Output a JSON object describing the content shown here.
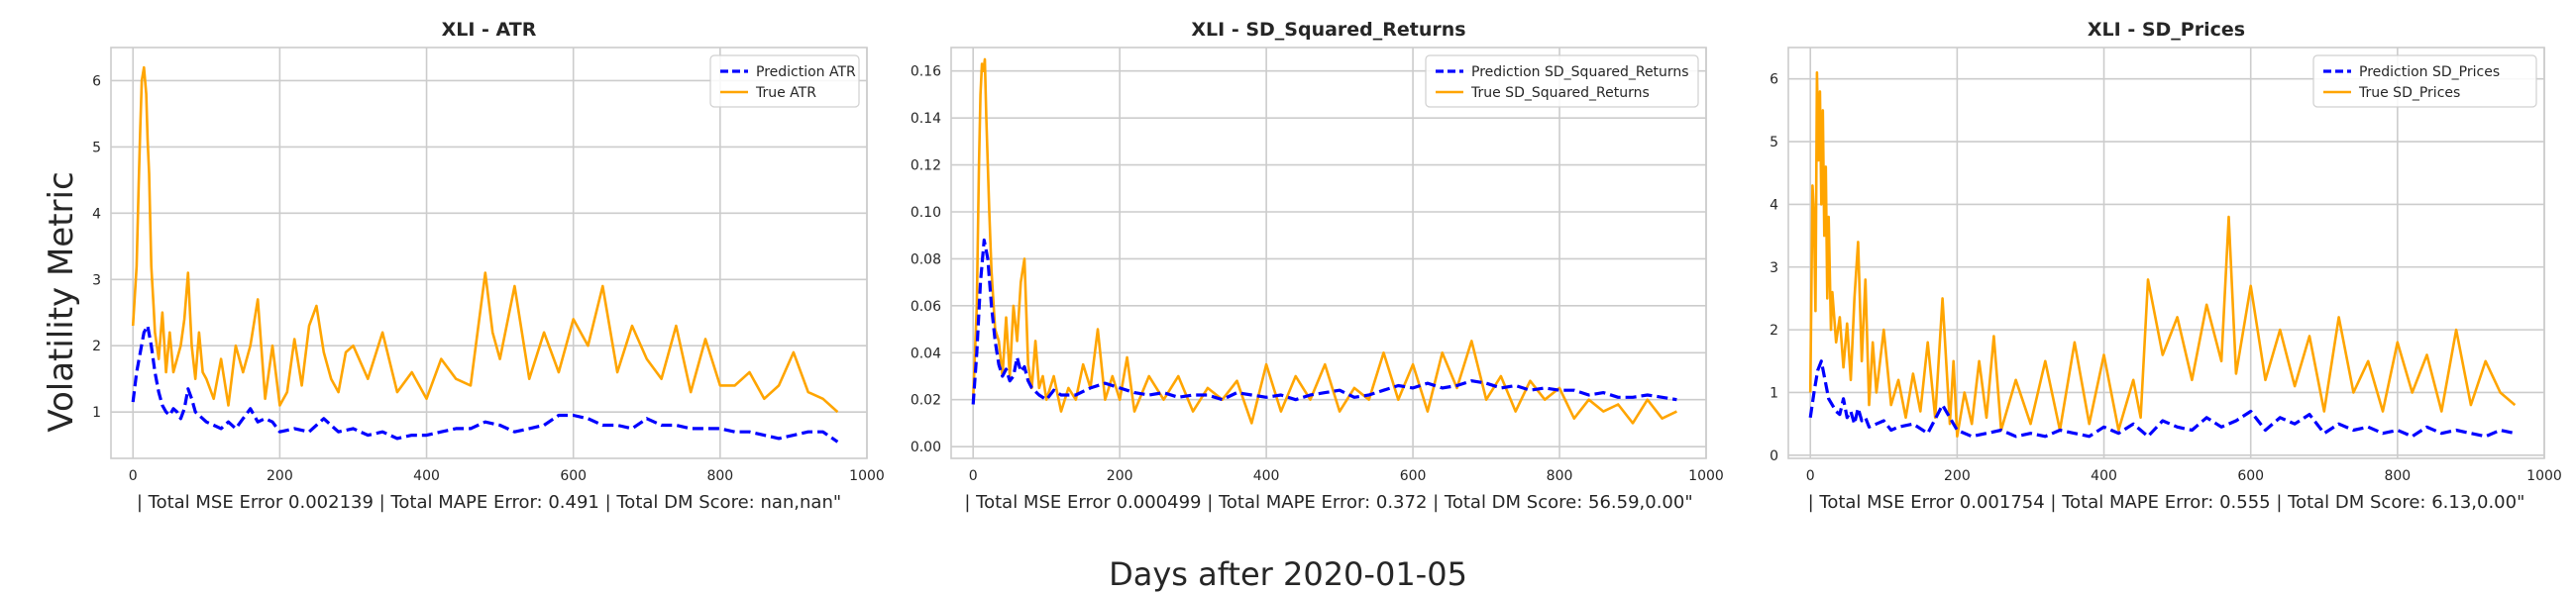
{
  "figure": {
    "ylabel": "Volatility Metric",
    "xlabel": "Days after 2020-01-05"
  },
  "colors": {
    "prediction": "#0000ff",
    "true": "#ffa500",
    "grid": "#cccccc",
    "frame": "#cccccc"
  },
  "chart_data": [
    {
      "type": "line",
      "title": "XLI - ATR",
      "xlabel": "| Total MSE Error 0.002139 | Total MAPE Error: 0.491 | Total DM Score: nan,nan\"",
      "xlim": [
        -30,
        1000
      ],
      "ylim": [
        0.3,
        6.5
      ],
      "xticks": [
        0,
        200,
        400,
        600,
        800,
        1000
      ],
      "yticks": [
        1,
        2,
        3,
        4,
        5,
        6
      ],
      "legend_position": "top-right",
      "series": [
        {
          "name": "Prediction ATR",
          "style": "dashed",
          "color": "#0000ff",
          "x": [
            0,
            5,
            10,
            15,
            20,
            25,
            30,
            35,
            40,
            45,
            50,
            55,
            60,
            65,
            70,
            75,
            80,
            85,
            90,
            95,
            100,
            110,
            120,
            130,
            140,
            150,
            160,
            170,
            180,
            190,
            200,
            220,
            240,
            260,
            280,
            300,
            320,
            340,
            360,
            380,
            400,
            420,
            440,
            460,
            480,
            500,
            520,
            540,
            560,
            580,
            600,
            620,
            640,
            660,
            680,
            700,
            720,
            740,
            760,
            780,
            800,
            820,
            840,
            860,
            880,
            900,
            920,
            940,
            960
          ],
          "y": [
            1.15,
            1.6,
            1.9,
            2.2,
            2.3,
            2.0,
            1.6,
            1.3,
            1.1,
            1.0,
            0.95,
            1.05,
            1.0,
            0.9,
            1.05,
            1.35,
            1.2,
            1.0,
            0.95,
            0.9,
            0.85,
            0.8,
            0.75,
            0.85,
            0.75,
            0.9,
            1.05,
            0.85,
            0.9,
            0.85,
            0.7,
            0.75,
            0.7,
            0.9,
            0.7,
            0.75,
            0.65,
            0.7,
            0.6,
            0.65,
            0.65,
            0.7,
            0.75,
            0.75,
            0.85,
            0.8,
            0.7,
            0.75,
            0.8,
            0.95,
            0.95,
            0.9,
            0.8,
            0.8,
            0.75,
            0.9,
            0.8,
            0.8,
            0.75,
            0.75,
            0.75,
            0.7,
            0.7,
            0.65,
            0.6,
            0.65,
            0.7,
            0.7,
            0.55
          ]
        },
        {
          "name": "True ATR",
          "style": "solid",
          "color": "#ffa500",
          "x": [
            0,
            5,
            8,
            10,
            12,
            15,
            18,
            20,
            22,
            25,
            28,
            30,
            35,
            40,
            45,
            50,
            55,
            60,
            65,
            70,
            75,
            80,
            85,
            90,
            95,
            100,
            110,
            120,
            130,
            140,
            150,
            160,
            170,
            180,
            190,
            200,
            210,
            220,
            230,
            240,
            250,
            260,
            270,
            280,
            290,
            300,
            320,
            340,
            360,
            380,
            400,
            420,
            440,
            460,
            480,
            490,
            500,
            520,
            540,
            560,
            580,
            600,
            620,
            640,
            660,
            680,
            700,
            720,
            740,
            760,
            780,
            800,
            820,
            840,
            860,
            880,
            900,
            920,
            940,
            960
          ],
          "y": [
            2.3,
            3.2,
            4.5,
            5.3,
            6.0,
            6.2,
            5.8,
            5.1,
            4.6,
            3.2,
            2.6,
            2.2,
            1.8,
            2.5,
            1.6,
            2.2,
            1.6,
            1.8,
            2.0,
            2.4,
            3.1,
            2.0,
            1.5,
            2.2,
            1.6,
            1.5,
            1.2,
            1.8,
            1.1,
            2.0,
            1.6,
            2.0,
            2.7,
            1.2,
            2.0,
            1.1,
            1.3,
            2.1,
            1.4,
            2.3,
            2.6,
            1.9,
            1.5,
            1.3,
            1.9,
            2.0,
            1.5,
            2.2,
            1.3,
            1.6,
            1.2,
            1.8,
            1.5,
            1.4,
            3.1,
            2.2,
            1.8,
            2.9,
            1.5,
            2.2,
            1.6,
            2.4,
            2.0,
            2.9,
            1.6,
            2.3,
            1.8,
            1.5,
            2.3,
            1.3,
            2.1,
            1.4,
            1.4,
            1.6,
            1.2,
            1.4,
            1.9,
            1.3,
            1.2,
            1.0
          ]
        }
      ]
    },
    {
      "type": "line",
      "title": "XLI - SD_Squared_Returns",
      "xlabel": "| Total MSE Error 0.000499 | Total MAPE Error: 0.372 | Total DM Score: 56.59,0.00\"",
      "xlim": [
        -30,
        1000
      ],
      "ylim": [
        -0.005,
        0.17
      ],
      "xticks": [
        0,
        200,
        400,
        600,
        800,
        1000
      ],
      "yticks": [
        0.0,
        0.02,
        0.04,
        0.06,
        0.08,
        0.1,
        0.12,
        0.14,
        0.16
      ],
      "ytick_labels": [
        "0.00",
        "0.02",
        "0.04",
        "0.06",
        "0.08",
        "0.10",
        "0.12",
        "0.14",
        "0.16"
      ],
      "legend_position": "top-right",
      "series": [
        {
          "name": "Prediction SD_Squared_Returns",
          "style": "dashed",
          "color": "#0000ff",
          "x": [
            0,
            5,
            10,
            15,
            20,
            25,
            30,
            35,
            40,
            45,
            50,
            55,
            60,
            65,
            70,
            75,
            80,
            90,
            100,
            110,
            120,
            140,
            160,
            180,
            200,
            220,
            240,
            260,
            280,
            300,
            320,
            340,
            360,
            380,
            400,
            420,
            440,
            460,
            480,
            500,
            520,
            540,
            560,
            580,
            600,
            620,
            640,
            660,
            680,
            700,
            720,
            740,
            760,
            780,
            800,
            820,
            840,
            860,
            880,
            900,
            920,
            940,
            960
          ],
          "y": [
            0.018,
            0.04,
            0.07,
            0.088,
            0.08,
            0.06,
            0.045,
            0.035,
            0.03,
            0.033,
            0.028,
            0.03,
            0.038,
            0.032,
            0.034,
            0.028,
            0.025,
            0.022,
            0.02,
            0.024,
            0.022,
            0.022,
            0.025,
            0.027,
            0.025,
            0.023,
            0.022,
            0.023,
            0.021,
            0.022,
            0.022,
            0.02,
            0.023,
            0.022,
            0.021,
            0.022,
            0.02,
            0.022,
            0.023,
            0.024,
            0.021,
            0.022,
            0.024,
            0.026,
            0.025,
            0.027,
            0.025,
            0.026,
            0.028,
            0.027,
            0.025,
            0.026,
            0.024,
            0.025,
            0.024,
            0.024,
            0.022,
            0.023,
            0.021,
            0.021,
            0.022,
            0.021,
            0.02
          ]
        },
        {
          "name": "True SD_Squared_Returns",
          "style": "solid",
          "color": "#ffa500",
          "x": [
            0,
            5,
            8,
            10,
            12,
            14,
            16,
            18,
            20,
            22,
            25,
            28,
            30,
            35,
            40,
            45,
            50,
            55,
            60,
            65,
            70,
            75,
            80,
            85,
            90,
            95,
            100,
            110,
            120,
            130,
            140,
            150,
            160,
            170,
            180,
            190,
            200,
            210,
            220,
            240,
            260,
            280,
            300,
            320,
            340,
            360,
            380,
            400,
            420,
            440,
            460,
            480,
            500,
            520,
            540,
            560,
            580,
            600,
            620,
            640,
            660,
            680,
            700,
            720,
            740,
            760,
            780,
            800,
            820,
            840,
            860,
            880,
            900,
            920,
            940,
            960
          ],
          "y": [
            0.02,
            0.06,
            0.12,
            0.15,
            0.163,
            0.16,
            0.165,
            0.14,
            0.12,
            0.1,
            0.075,
            0.06,
            0.05,
            0.045,
            0.03,
            0.055,
            0.03,
            0.06,
            0.045,
            0.07,
            0.08,
            0.035,
            0.025,
            0.045,
            0.025,
            0.03,
            0.02,
            0.03,
            0.015,
            0.025,
            0.02,
            0.035,
            0.025,
            0.05,
            0.02,
            0.03,
            0.02,
            0.038,
            0.015,
            0.03,
            0.02,
            0.03,
            0.015,
            0.025,
            0.02,
            0.028,
            0.01,
            0.035,
            0.015,
            0.03,
            0.02,
            0.035,
            0.015,
            0.025,
            0.02,
            0.04,
            0.02,
            0.035,
            0.015,
            0.04,
            0.025,
            0.045,
            0.02,
            0.03,
            0.015,
            0.028,
            0.02,
            0.025,
            0.012,
            0.02,
            0.015,
            0.018,
            0.01,
            0.02,
            0.012,
            0.015
          ]
        }
      ]
    },
    {
      "type": "line",
      "title": "XLI - SD_Prices",
      "xlabel": "| Total MSE Error 0.001754 | Total MAPE Error: 0.555 | Total DM Score: 6.13,0.00\"",
      "xlim": [
        -30,
        1000
      ],
      "ylim": [
        -0.05,
        6.5
      ],
      "xticks": [
        0,
        200,
        400,
        600,
        800,
        1000
      ],
      "yticks": [
        0,
        1,
        2,
        3,
        4,
        5,
        6
      ],
      "legend_position": "top-right",
      "series": [
        {
          "name": "Prediction SD_Prices",
          "style": "dashed",
          "color": "#0000ff",
          "x": [
            0,
            5,
            10,
            15,
            20,
            25,
            30,
            35,
            40,
            45,
            50,
            55,
            60,
            65,
            70,
            75,
            80,
            90,
            100,
            110,
            120,
            140,
            160,
            180,
            200,
            220,
            240,
            260,
            280,
            300,
            320,
            340,
            360,
            380,
            400,
            420,
            440,
            460,
            480,
            500,
            520,
            540,
            560,
            580,
            600,
            620,
            640,
            660,
            680,
            700,
            720,
            740,
            760,
            780,
            800,
            820,
            840,
            860,
            880,
            900,
            920,
            940,
            960
          ],
          "y": [
            0.6,
            1.0,
            1.35,
            1.5,
            1.2,
            0.9,
            0.8,
            0.7,
            0.65,
            0.9,
            0.6,
            0.7,
            0.5,
            0.75,
            0.55,
            0.6,
            0.45,
            0.5,
            0.55,
            0.4,
            0.45,
            0.5,
            0.35,
            0.8,
            0.4,
            0.3,
            0.35,
            0.4,
            0.3,
            0.35,
            0.3,
            0.4,
            0.35,
            0.3,
            0.45,
            0.35,
            0.5,
            0.3,
            0.55,
            0.45,
            0.4,
            0.6,
            0.45,
            0.55,
            0.7,
            0.4,
            0.6,
            0.5,
            0.65,
            0.35,
            0.5,
            0.4,
            0.45,
            0.35,
            0.4,
            0.3,
            0.45,
            0.35,
            0.4,
            0.35,
            0.3,
            0.4,
            0.35
          ]
        },
        {
          "name": "True SD_Prices",
          "style": "solid",
          "color": "#ffa500",
          "x": [
            0,
            3,
            5,
            7,
            9,
            11,
            13,
            15,
            17,
            19,
            21,
            23,
            25,
            28,
            30,
            35,
            40,
            45,
            50,
            55,
            60,
            65,
            70,
            75,
            80,
            85,
            90,
            100,
            110,
            120,
            130,
            140,
            150,
            160,
            170,
            180,
            190,
            195,
            200,
            210,
            220,
            230,
            240,
            250,
            260,
            280,
            300,
            320,
            340,
            360,
            380,
            400,
            420,
            440,
            450,
            460,
            480,
            500,
            520,
            540,
            560,
            570,
            580,
            600,
            620,
            640,
            660,
            680,
            700,
            720,
            740,
            760,
            780,
            800,
            820,
            840,
            860,
            880,
            900,
            920,
            940,
            960
          ],
          "y": [
            1.0,
            4.3,
            3.8,
            2.3,
            6.1,
            4.7,
            5.8,
            4.0,
            5.5,
            3.5,
            4.6,
            2.5,
            3.8,
            2.0,
            2.6,
            1.8,
            2.2,
            1.4,
            2.1,
            1.2,
            2.5,
            3.4,
            1.5,
            2.8,
            0.8,
            1.8,
            1.0,
            2.0,
            0.8,
            1.2,
            0.6,
            1.3,
            0.7,
            1.8,
            0.6,
            2.5,
            0.5,
            1.5,
            0.3,
            1.0,
            0.5,
            1.5,
            0.6,
            1.9,
            0.4,
            1.2,
            0.5,
            1.5,
            0.4,
            1.8,
            0.5,
            1.6,
            0.4,
            1.2,
            0.6,
            2.8,
            1.6,
            2.2,
            1.2,
            2.4,
            1.5,
            3.8,
            1.3,
            2.7,
            1.2,
            2.0,
            1.1,
            1.9,
            0.7,
            2.2,
            1.0,
            1.5,
            0.7,
            1.8,
            1.0,
            1.6,
            0.7,
            2.0,
            0.8,
            1.5,
            1.0,
            0.8
          ]
        }
      ]
    }
  ]
}
